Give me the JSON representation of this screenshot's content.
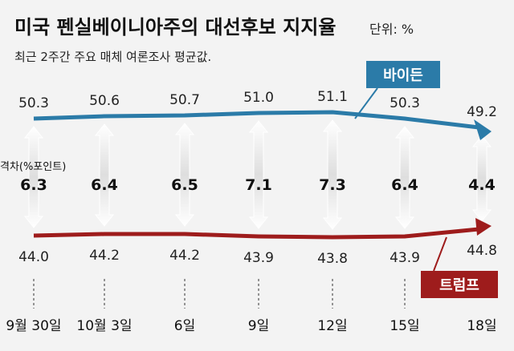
{
  "header": {
    "title": "미국 펜실베이니아주의 대선후보 지지율",
    "unit": "단위: %",
    "subtitle": "최근 2주간 주요 매체 여론조사 평균값."
  },
  "colors": {
    "biden": "#2b7ba8",
    "trump": "#9e1c1c",
    "background": "#f3f3f3"
  },
  "chart_data": {
    "type": "line",
    "x": [
      "9월 30일",
      "10월 3일",
      "6일",
      "9일",
      "12일",
      "15일",
      "18일"
    ],
    "series": [
      {
        "name": "바이든",
        "values": [
          50.3,
          50.6,
          50.7,
          51.0,
          51.1,
          50.3,
          49.2
        ]
      },
      {
        "name": "트럼프",
        "values": [
          44.0,
          44.2,
          44.2,
          43.9,
          43.8,
          43.9,
          44.8
        ]
      }
    ],
    "gap_label": "격차(%포인트)",
    "gaps": [
      6.3,
      6.4,
      6.5,
      7.1,
      7.3,
      6.4,
      4.4
    ]
  }
}
